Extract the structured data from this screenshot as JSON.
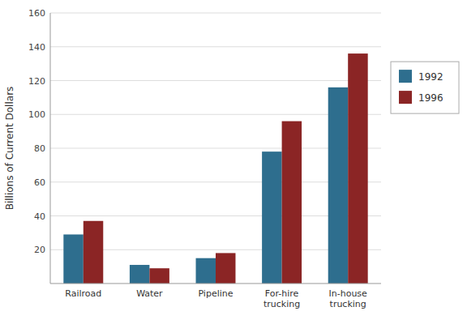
{
  "chart_data": {
    "type": "bar",
    "categories": [
      "Railroad",
      "Water",
      "Pipeline",
      "For-hire\ntrucking",
      "In-house\ntrucking"
    ],
    "series": [
      {
        "name": "1992",
        "color": "#2E6E8E",
        "values": [
          29,
          11,
          15,
          78,
          116
        ]
      },
      {
        "name": "1996",
        "color": "#8B2525",
        "values": [
          37,
          9,
          18,
          96,
          136
        ]
      }
    ],
    "ylabel": "Billions of Current Dollars",
    "ylim": [
      0,
      160
    ],
    "yticks": [
      20,
      40,
      60,
      80,
      100,
      120,
      140,
      160
    ],
    "grid": true,
    "legend": "right"
  }
}
